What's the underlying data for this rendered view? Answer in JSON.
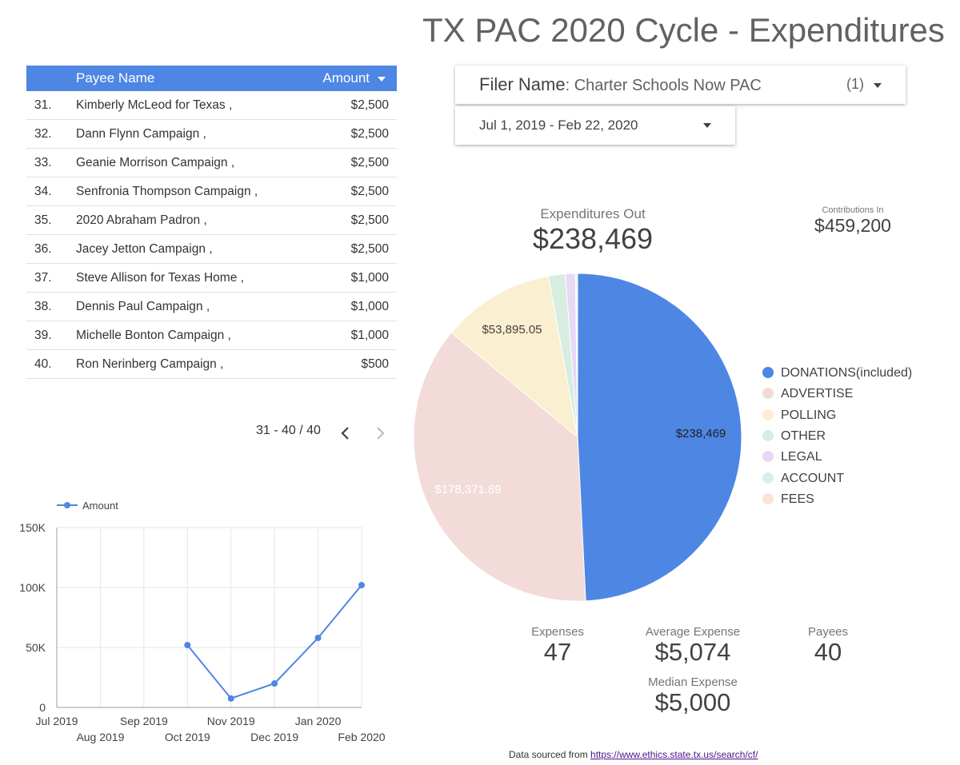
{
  "page": {
    "title": "TX PAC 2020 Cycle - Expenditures"
  },
  "table": {
    "headers": {
      "name": "Payee Name",
      "amount": "Amount"
    },
    "rows": [
      {
        "idx": "31.",
        "name": "Kimberly McLeod for Texas ,",
        "amount": "$2,500"
      },
      {
        "idx": "32.",
        "name": "Dann Flynn Campaign ,",
        "amount": "$2,500"
      },
      {
        "idx": "33.",
        "name": "Geanie Morrison Campaign ,",
        "amount": "$2,500"
      },
      {
        "idx": "34.",
        "name": "Senfronia Thompson Campaign ,",
        "amount": "$2,500"
      },
      {
        "idx": "35.",
        "name": "2020 Abraham Padron ,",
        "amount": "$2,500"
      },
      {
        "idx": "36.",
        "name": "Jacey Jetton Campaign ,",
        "amount": "$2,500"
      },
      {
        "idx": "37.",
        "name": "Steve Allison for Texas Home ,",
        "amount": "$1,000"
      },
      {
        "idx": "38.",
        "name": "Dennis Paul Campaign ,",
        "amount": "$1,000"
      },
      {
        "idx": "39.",
        "name": "Michelle Bonton Campaign ,",
        "amount": "$1,000"
      },
      {
        "idx": "40.",
        "name": "Ron Nerinberg Campaign ,",
        "amount": "$500"
      }
    ],
    "pagination": "31 - 40 / 40"
  },
  "filters": {
    "filer_label": "Filer Name",
    "filer_value": ": Charter Schools Now PAC",
    "filer_count": "(1)",
    "date_range": "Jul 1, 2019 - Feb 22, 2020"
  },
  "kpis": {
    "expenditures_out": {
      "label": "Expenditures Out",
      "value": "$238,469"
    },
    "contributions_in": {
      "label": "Contributions In",
      "value": "$459,200"
    },
    "expenses": {
      "label": "Expenses",
      "value": "47"
    },
    "average_expense": {
      "label": "Average Expense",
      "value": "$5,074"
    },
    "payees": {
      "label": "Payees",
      "value": "40"
    },
    "median_expense": {
      "label": "Median Expense",
      "value": "$5,000"
    }
  },
  "footer": {
    "text": "Data sourced from ",
    "link": "https://www.ethics.state.tx.us/search/cf/"
  },
  "chart_data": [
    {
      "type": "pie",
      "slices": [
        {
          "name": "DONATIONS(included)",
          "value": 238469,
          "label": "$238,469",
          "color": "#4e86e4"
        },
        {
          "name": "ADVERTISE",
          "value": 178371.89,
          "label": "$178,371.89",
          "color": "#f2dbd8"
        },
        {
          "name": "POLLING",
          "value": 53895.05,
          "label": "$53,895.05",
          "color": "#faefd0"
        },
        {
          "name": "OTHER",
          "value": 8000,
          "label": "",
          "color": "#d7ede2"
        },
        {
          "name": "LEGAL",
          "value": 4800,
          "label": "",
          "color": "#e7d9f3"
        },
        {
          "name": "ACCOUNT",
          "value": 700,
          "label": "",
          "color": "#d8eef2"
        },
        {
          "name": "FEES",
          "value": 300,
          "label": "",
          "color": "#fbe1da"
        }
      ],
      "legend": "right"
    },
    {
      "type": "line",
      "series": [
        {
          "name": "Amount",
          "color": "#4e86e4",
          "x": [
            "2019-10-01",
            "2019-11-01",
            "2019-12-01",
            "2020-01-01",
            "2020-02-01"
          ],
          "values": [
            52000,
            7500,
            20000,
            58000,
            102000
          ]
        }
      ],
      "x_ticks": [
        "Jul 2019",
        "Aug 2019",
        "Sep 2019",
        "Oct 2019",
        "Nov 2019",
        "Dec 2019",
        "Jan 2020",
        "Feb 2020"
      ],
      "y_ticks": [
        "0",
        "50K",
        "100K",
        "150K"
      ],
      "ylim": [
        0,
        150000
      ],
      "grid": true,
      "legend": "top-left"
    }
  ]
}
